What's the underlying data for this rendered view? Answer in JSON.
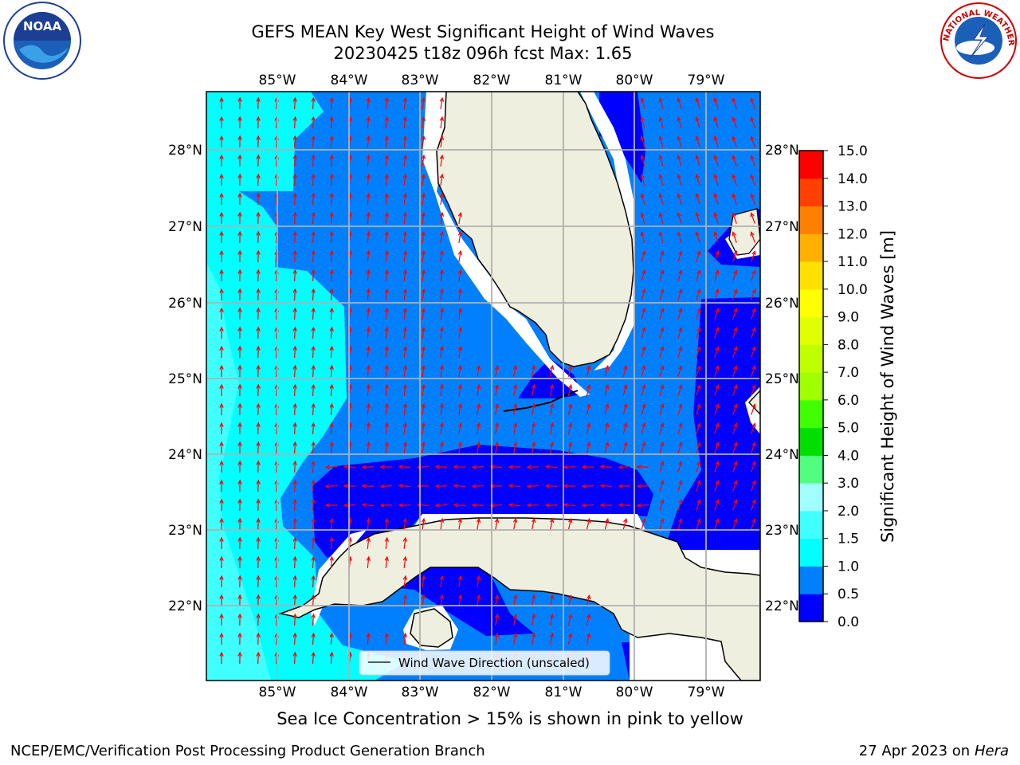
{
  "title": {
    "line1": "GEFS MEAN Key West Significant Height of Wind Waves",
    "line2": "20230425 t18z 096h fcst   Max: 1.65"
  },
  "map": {
    "lon_ticks": [
      "85°W",
      "84°W",
      "83°W",
      "82°W",
      "81°W",
      "80°W",
      "79°W"
    ],
    "lat_ticks": [
      "28°N",
      "27°N",
      "26°N",
      "25°N",
      "24°N",
      "23°N",
      "22°N"
    ],
    "legend_label": "Wind Wave Direction (unscaled)",
    "colors": {
      "ocean_deep": "#0000ff",
      "ocean_mid": "#0080ff",
      "ocean_cyan": "#00ffff",
      "ocean_light": "#40ffff",
      "land": "#efefdf",
      "arrow": "#ff0000",
      "grid": "#b0b0b0"
    }
  },
  "colorbar": {
    "label": "Significant Height of Wind Waves [m]",
    "ticks": [
      "0.0",
      "0.5",
      "1.0",
      "1.5",
      "2.0",
      "3.0",
      "4.0",
      "5.0",
      "6.0",
      "7.0",
      "8.0",
      "9.0",
      "10.0",
      "11.0",
      "12.0",
      "13.0",
      "14.0",
      "15.0"
    ],
    "colors": [
      "#0000ff",
      "#0080ff",
      "#00ffff",
      "#40ffff",
      "#a0ffff",
      "#50ff80",
      "#00e000",
      "#40ff00",
      "#a0ff00",
      "#c0ff00",
      "#e0ff00",
      "#ffff00",
      "#ffe000",
      "#ffb000",
      "#ff8000",
      "#ff4000",
      "#ff0000"
    ]
  },
  "note": "Sea Ice Concentration > 15% is shown in pink to yellow",
  "footer": {
    "left": "NCEP/EMC/Verification Post Processing Product Generation Branch",
    "right_date": "27 Apr 2023 on ",
    "right_host": "Hera"
  },
  "logos": {
    "left": "NOAA",
    "right": "NATIONAL WEATHER SERVICE"
  }
}
